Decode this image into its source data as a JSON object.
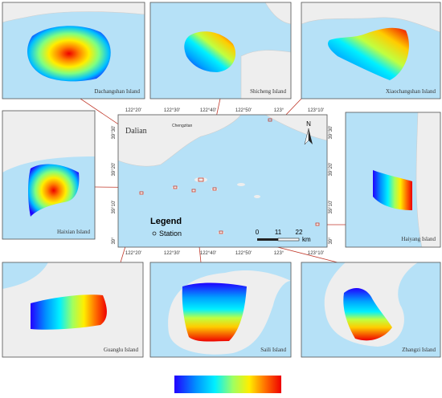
{
  "panels": [
    {
      "label": "Dachangshan Island"
    },
    {
      "label": "Shicheng Island"
    },
    {
      "label": "Xiaochangshan Island"
    },
    {
      "label": "Haixian Island"
    },
    {
      "label": "Haiyang Island"
    },
    {
      "label": "Guanglu Island"
    },
    {
      "label": "Saili Island"
    },
    {
      "label": "Zhangzi Island"
    }
  ],
  "main_map": {
    "places": [
      "Dalian",
      "Chengzitan"
    ],
    "north": "N",
    "legend": {
      "title": "Legend",
      "item": "Station"
    },
    "scale_bar": {
      "ticks": [
        "0",
        "11",
        "22"
      ],
      "unit": "km"
    },
    "lon_ticks": [
      "122°20'",
      "122°30'",
      "122°40'",
      "122°50'",
      "123°",
      "123°10'"
    ],
    "lat_ticks": [
      "39°30'",
      "39°20'",
      "39°10'",
      "39°"
    ]
  }
}
